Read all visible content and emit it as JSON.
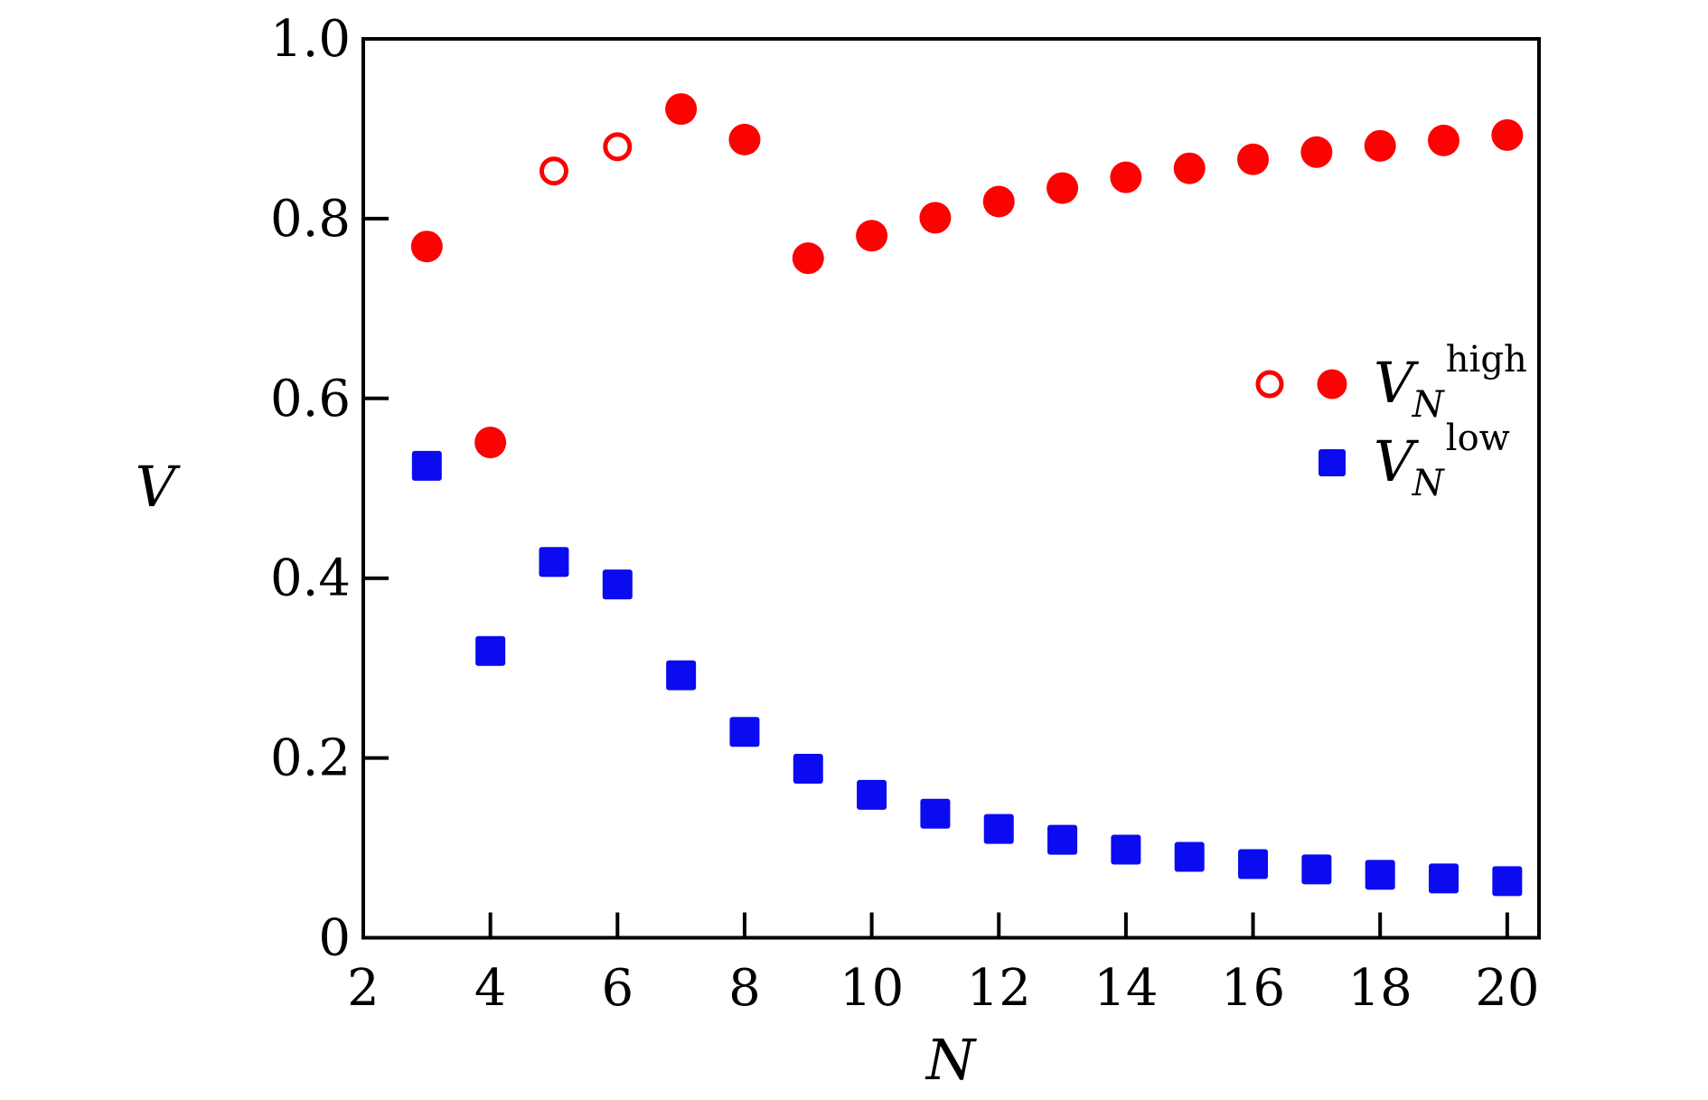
{
  "colors": {
    "high_series": "#fb0303",
    "low_series": "#0b0bf0",
    "axis": "#000000",
    "background": "#ffffff"
  },
  "chart_data": {
    "type": "scatter",
    "title": "",
    "xlabel": "N",
    "ylabel": "V",
    "xlim": [
      2,
      20.5
    ],
    "ylim": [
      0,
      1.0
    ],
    "x_ticks": [
      2,
      4,
      6,
      8,
      10,
      12,
      14,
      16,
      18,
      20
    ],
    "y_ticks": [
      0,
      0.2,
      0.4,
      0.6,
      0.8,
      1.0
    ],
    "y_tick_labels": [
      "0",
      "0.2",
      "0.4",
      "0.6",
      "0.8",
      "1.0"
    ],
    "grid": false,
    "legend_position": "center-right",
    "series": [
      {
        "name": "V_N_high_filled",
        "marker": "filled-circle",
        "color": "#fb0303",
        "points": [
          [
            3,
            0.769
          ],
          [
            4,
            0.551
          ],
          [
            7,
            0.922
          ],
          [
            8,
            0.888
          ],
          [
            9,
            0.756
          ],
          [
            10,
            0.781
          ],
          [
            11,
            0.801
          ],
          [
            12,
            0.819
          ],
          [
            13,
            0.834
          ],
          [
            14,
            0.846
          ],
          [
            15,
            0.856
          ],
          [
            16,
            0.866
          ],
          [
            17,
            0.874
          ],
          [
            18,
            0.881
          ],
          [
            19,
            0.887
          ],
          [
            20,
            0.893
          ]
        ]
      },
      {
        "name": "V_N_high_open",
        "marker": "open-circle",
        "color": "#fb0303",
        "points": [
          [
            5,
            0.853
          ],
          [
            6,
            0.88
          ]
        ]
      },
      {
        "name": "V_N_low",
        "marker": "filled-square",
        "color": "#0b0bf0",
        "points": [
          [
            3,
            0.525
          ],
          [
            4,
            0.319
          ],
          [
            5,
            0.418
          ],
          [
            6,
            0.393
          ],
          [
            7,
            0.292
          ],
          [
            8,
            0.229
          ],
          [
            9,
            0.188
          ],
          [
            10,
            0.159
          ],
          [
            11,
            0.138
          ],
          [
            12,
            0.121
          ],
          [
            13,
            0.109
          ],
          [
            14,
            0.098
          ],
          [
            15,
            0.09
          ],
          [
            16,
            0.082
          ],
          [
            17,
            0.076
          ],
          [
            18,
            0.07
          ],
          [
            19,
            0.066
          ],
          [
            20,
            0.063
          ]
        ]
      }
    ],
    "legend": [
      {
        "markers": [
          "open-circle",
          "filled-circle"
        ],
        "color": "#fb0303",
        "label_base": "V",
        "label_sub": "N",
        "label_sup": "high"
      },
      {
        "markers": [
          "filled-square"
        ],
        "color": "#0b0bf0",
        "label_base": "V",
        "label_sub": "N",
        "label_sup": "low"
      }
    ]
  }
}
